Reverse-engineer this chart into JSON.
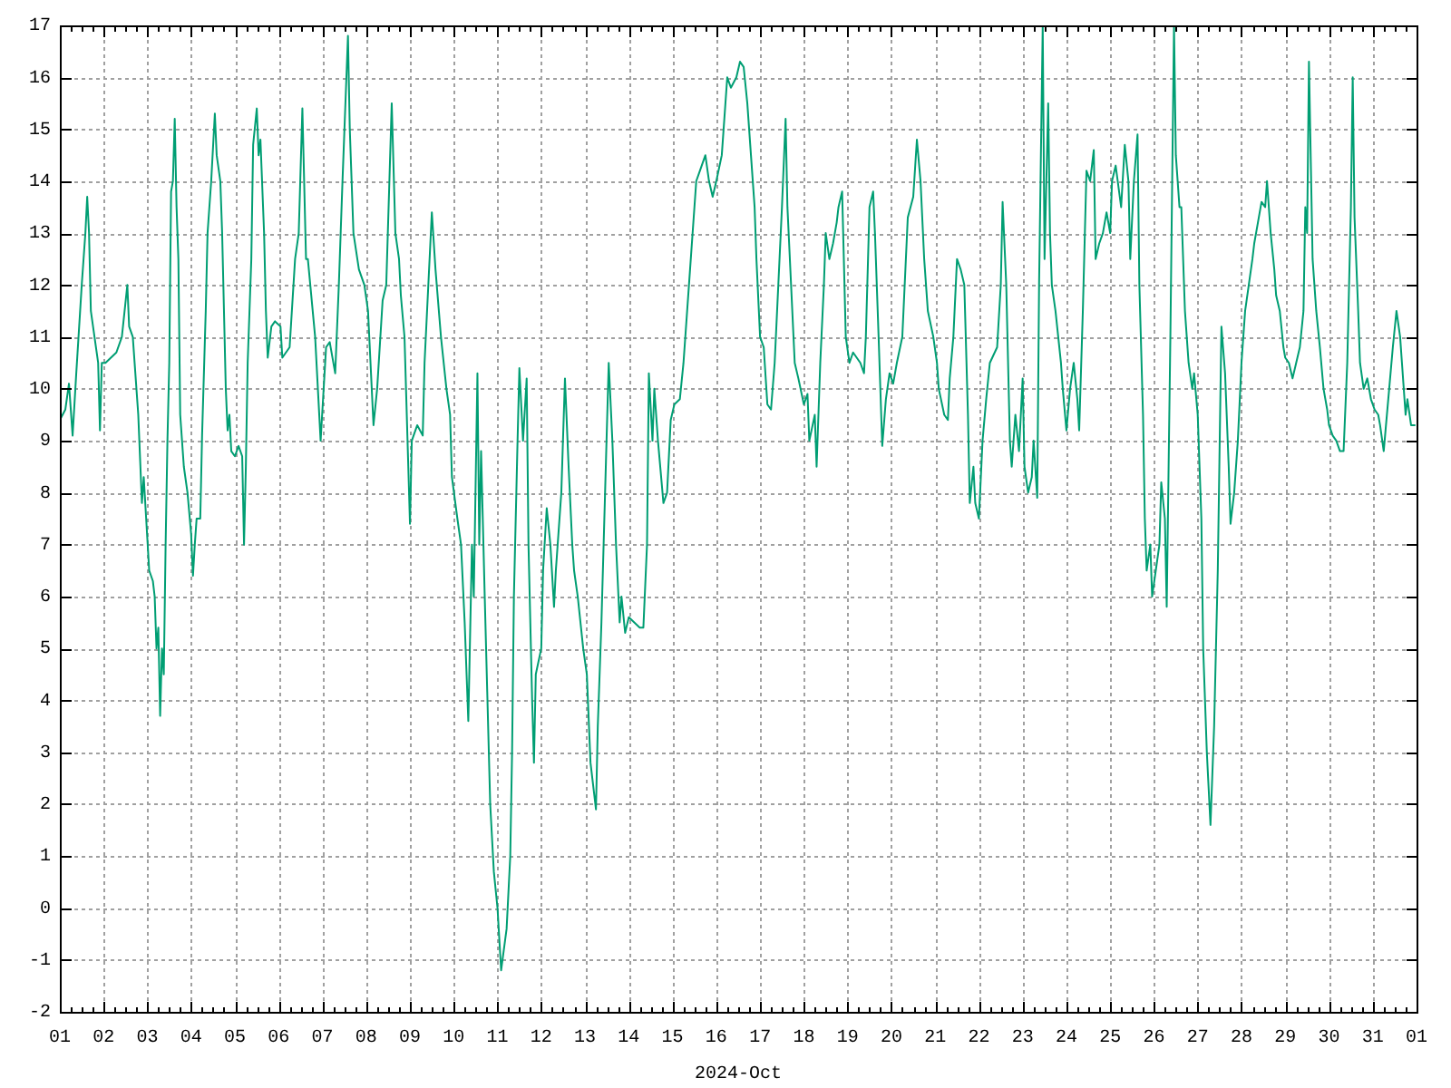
{
  "chart_data": {
    "type": "line",
    "xlabel": "2024-Oct",
    "x": [
      "2024-10-01T00:00",
      "2024-10-01T03:00",
      "2024-10-01T05:00",
      "2024-10-01T07:00",
      "2024-10-01T09:00",
      "2024-10-01T12:00",
      "2024-10-01T14:00",
      "2024-10-01T15:00",
      "2024-10-01T16:00",
      "2024-10-01T17:00",
      "2024-10-01T19:00",
      "2024-10-01T21:00",
      "2024-10-01T22:00",
      "2024-10-01T23:00",
      "2024-10-02T01:00",
      "2024-10-02T04:00",
      "2024-10-02T07:00",
      "2024-10-02T10:00",
      "2024-10-02T13:00",
      "2024-10-02T14:00",
      "2024-10-02T16:00",
      "2024-10-02T19:00",
      "2024-10-02T21:00",
      "2024-10-02T22:00",
      "2024-10-03T00:00",
      "2024-10-03T01:00",
      "2024-10-03T03:00",
      "2024-10-03T04:00",
      "2024-10-03T05:00",
      "2024-10-03T06:00",
      "2024-10-03T07:00",
      "2024-10-03T08:00",
      "2024-10-03T09:00",
      "2024-10-03T10:00",
      "2024-10-03T11:00",
      "2024-10-03T12:00",
      "2024-10-03T13:00",
      "2024-10-03T14:00",
      "2024-10-03T15:00",
      "2024-10-03T16:00",
      "2024-10-03T17:00",
      "2024-10-03T18:00",
      "2024-10-03T20:00",
      "2024-10-03T22:00",
      "2024-10-04T00:00",
      "2024-10-04T01:00",
      "2024-10-04T02:00",
      "2024-10-04T03:00",
      "2024-10-04T05:00",
      "2024-10-04T06:00",
      "2024-10-04T08:00",
      "2024-10-04T09:00",
      "2024-10-04T11:00",
      "2024-10-04T13:00",
      "2024-10-04T14:00",
      "2024-10-04T16:00",
      "2024-10-04T17:00",
      "2024-10-04T19:00",
      "2024-10-04T20:00",
      "2024-10-04T21:00",
      "2024-10-04T22:00",
      "2024-10-05T00:00",
      "2024-10-05T02:00",
      "2024-10-05T04:00",
      "2024-10-05T05:00",
      "2024-10-05T06:00",
      "2024-10-05T07:00",
      "2024-10-05T09:00",
      "2024-10-05T10:00",
      "2024-10-05T12:00",
      "2024-10-05T13:00",
      "2024-10-05T14:00",
      "2024-10-05T16:00",
      "2024-10-05T17:00",
      "2024-10-05T18:00",
      "2024-10-05T20:00",
      "2024-10-05T22:00",
      "2024-10-06T01:00",
      "2024-10-06T02:00",
      "2024-10-06T06:00",
      "2024-10-06T09:00",
      "2024-10-06T11:00",
      "2024-10-06T13:00",
      "2024-10-06T15:00",
      "2024-10-06T16:00",
      "2024-10-06T20:00",
      "2024-10-06T23:00",
      "2024-10-07T02:00",
      "2024-10-07T04:00",
      "2024-10-07T07:00",
      "2024-10-07T09:00",
      "2024-10-07T11:00",
      "2024-10-07T14:00",
      "2024-10-07T15:00",
      "2024-10-07T17:00",
      "2024-10-07T20:00",
      "2024-10-07T23:00",
      "2024-10-08T01:00",
      "2024-10-08T04:00",
      "2024-10-08T06:00",
      "2024-10-08T09:00",
      "2024-10-08T11:00",
      "2024-10-08T14:00",
      "2024-10-08T16:00",
      "2024-10-08T18:00",
      "2024-10-08T19:00",
      "2024-10-08T21:00",
      "2024-10-09T00:00",
      "2024-10-09T01:00",
      "2024-10-09T04:00",
      "2024-10-09T07:00",
      "2024-10-09T08:00",
      "2024-10-09T12:00",
      "2024-10-09T14:00",
      "2024-10-09T17:00",
      "2024-10-09T20:00",
      "2024-10-09T22:00",
      "2024-10-09T23:00",
      "2024-10-10T02:00",
      "2024-10-10T04:00",
      "2024-10-10T06:00",
      "2024-10-10T08:00",
      "2024-10-10T10:00",
      "2024-10-10T11:00",
      "2024-10-10T13:00",
      "2024-10-10T14:00",
      "2024-10-10T15:00",
      "2024-10-10T17:00",
      "2024-10-10T20:00",
      "2024-10-10T22:00",
      "2024-10-11T00:00",
      "2024-10-11T02:00",
      "2024-10-11T05:00",
      "2024-10-11T07:00",
      "2024-10-11T08:00",
      "2024-10-11T09:00",
      "2024-10-11T11:00",
      "2024-10-11T12:00",
      "2024-10-11T14:00",
      "2024-10-11T16:00",
      "2024-10-11T17:00",
      "2024-10-11T19:00",
      "2024-10-11T20:00",
      "2024-10-11T21:00",
      "2024-10-12T00:00",
      "2024-10-12T01:00",
      "2024-10-12T03:00",
      "2024-10-12T05:00",
      "2024-10-12T07:00",
      "2024-10-12T08:00",
      "2024-10-12T11:00",
      "2024-10-12T13:00",
      "2024-10-12T15:00",
      "2024-10-12T17:00",
      "2024-10-12T18:00",
      "2024-10-12T20:00",
      "2024-10-12T23:00",
      "2024-10-13T01:00",
      "2024-10-13T03:00",
      "2024-10-13T06:00",
      "2024-10-13T07:00",
      "2024-10-13T09:00",
      "2024-10-13T11:00",
      "2024-10-13T13:00",
      "2024-10-13T15:00",
      "2024-10-13T17:00",
      "2024-10-13T19:00",
      "2024-10-13T20:00",
      "2024-10-13T22:00",
      "2024-10-14T00:00",
      "2024-10-14T03:00",
      "2024-10-14T06:00",
      "2024-10-14T08:00",
      "2024-10-14T10:00",
      "2024-10-14T11:00",
      "2024-10-14T13:00",
      "2024-10-14T14:00",
      "2024-10-14T16:00",
      "2024-10-14T19:00",
      "2024-10-14T21:00",
      "2024-10-14T23:00",
      "2024-10-15T01:00",
      "2024-10-15T04:00",
      "2024-10-15T06:00",
      "2024-10-15T09:00",
      "2024-10-15T11:00",
      "2024-10-15T13:00",
      "2024-10-15T15:00",
      "2024-10-15T18:00",
      "2024-10-15T20:00",
      "2024-10-15T22:00",
      "2024-10-16T00:00",
      "2024-10-16T03:00",
      "2024-10-16T05:00",
      "2024-10-16T06:00",
      "2024-10-16T08:00",
      "2024-10-16T11:00",
      "2024-10-16T13:00",
      "2024-10-16T15:00",
      "2024-10-16T17:00",
      "2024-10-16T19:00",
      "2024-10-16T21:00",
      "2024-10-16T22:00",
      "2024-10-17T00:00",
      "2024-10-17T02:00",
      "2024-10-17T04:00",
      "2024-10-17T06:00",
      "2024-10-17T08:00",
      "2024-10-17T10:00",
      "2024-10-17T12:00",
      "2024-10-17T14:00",
      "2024-10-17T15:00",
      "2024-10-17T17:00",
      "2024-10-17T19:00",
      "2024-10-17T21:00",
      "2024-10-18T00:00",
      "2024-10-18T02:00",
      "2024-10-18T03:00",
      "2024-10-18T06:00",
      "2024-10-18T07:00",
      "2024-10-18T09:00",
      "2024-10-18T11:00",
      "2024-10-18T12:00",
      "2024-10-18T14:00",
      "2024-10-18T16:00",
      "2024-10-18T18:00",
      "2024-10-18T19:00",
      "2024-10-18T21:00",
      "2024-10-18T23:00",
      "2024-10-19T01:00",
      "2024-10-19T03:00",
      "2024-10-19T05:00",
      "2024-10-19T07:00",
      "2024-10-19T09:00",
      "2024-10-19T10:00",
      "2024-10-19T12:00",
      "2024-10-19T14:00",
      "2024-10-19T15:00",
      "2024-10-19T17:00",
      "2024-10-19T19:00",
      "2024-10-19T21:00",
      "2024-10-19T23:00",
      "2024-10-20T01:00",
      "2024-10-20T03:00",
      "2024-10-20T06:00",
      "2024-10-20T09:00",
      "2024-10-20T12:00",
      "2024-10-20T14:00",
      "2024-10-20T16:00",
      "2024-10-20T18:00",
      "2024-10-20T20:00",
      "2024-10-20T23:00",
      "2024-10-21T01:00",
      "2024-10-21T02:00",
      "2024-10-21T05:00",
      "2024-10-21T07:00",
      "2024-10-21T08:00",
      "2024-10-21T10:00",
      "2024-10-21T12:00",
      "2024-10-21T14:00",
      "2024-10-21T16:00",
      "2024-10-21T18:00",
      "2024-10-21T19:00",
      "2024-10-21T21:00",
      "2024-10-21T22:00",
      "2024-10-22T00:00",
      "2024-10-22T02:00",
      "2024-10-22T04:00",
      "2024-10-22T06:00",
      "2024-10-22T10:00",
      "2024-10-22T12:00",
      "2024-10-22T13:00",
      "2024-10-22T15:00",
      "2024-10-22T17:00",
      "2024-10-22T18:00",
      "2024-10-22T20:00",
      "2024-10-22T22:00",
      "2024-10-23T00:00",
      "2024-10-23T01:00",
      "2024-10-23T03:00",
      "2024-10-23T05:00",
      "2024-10-23T06:00",
      "2024-10-23T08:00",
      "2024-10-23T09:00",
      "2024-10-23T11:00",
      "2024-10-23T12:00",
      "2024-10-23T14:00",
      "2024-10-23T15:00",
      "2024-10-23T16:00",
      "2024-10-23T18:00",
      "2024-10-23T21:00",
      "2024-10-23T22:00",
      "2024-10-24T00:00",
      "2024-10-24T02:00",
      "2024-10-24T04:00",
      "2024-10-24T06:00",
      "2024-10-24T07:00",
      "2024-10-24T09:00",
      "2024-10-24T11:00",
      "2024-10-24T13:00",
      "2024-10-24T15:00",
      "2024-10-24T16:00",
      "2024-10-24T18:00",
      "2024-10-24T20:00",
      "2024-10-24T22:00",
      "2024-10-25T00:00",
      "2024-10-25T01:00",
      "2024-10-25T03:00",
      "2024-10-25T06:00",
      "2024-10-25T08:00",
      "2024-10-25T10:00",
      "2024-10-25T11:00",
      "2024-10-25T13:00",
      "2024-10-25T15:00",
      "2024-10-25T16:00",
      "2024-10-25T18:00",
      "2024-10-25T19:00",
      "2024-10-25T20:00",
      "2024-10-25T22:00",
      "2024-10-25T23:00",
      "2024-10-26T01:00",
      "2024-10-26T03:00",
      "2024-10-26T04:00",
      "2024-10-26T06:00",
      "2024-10-26T07:00",
      "2024-10-26T09:00",
      "2024-10-26T11:00",
      "2024-10-26T12:00",
      "2024-10-26T14:00",
      "2024-10-26T15:00",
      "2024-10-26T17:00",
      "2024-10-26T19:00",
      "2024-10-26T21:00",
      "2024-10-26T22:00",
      "2024-10-27T00:00",
      "2024-10-27T02:00",
      "2024-10-27T03:00",
      "2024-10-27T05:00",
      "2024-10-27T07:00",
      "2024-10-27T09:00",
      "2024-10-27T11:00",
      "2024-10-27T13:00",
      "2024-10-27T15:00",
      "2024-10-27T17:00",
      "2024-10-27T18:00",
      "2024-10-27T20:00",
      "2024-10-27T22:00",
      "2024-10-28T00:00",
      "2024-10-28T02:00",
      "2024-10-28T04:00",
      "2024-10-28T06:00",
      "2024-10-28T07:00",
      "2024-10-28T09:00",
      "2024-10-28T11:00",
      "2024-10-28T13:00",
      "2024-10-28T14:00",
      "2024-10-28T16:00",
      "2024-10-28T18:00",
      "2024-10-28T19:00",
      "2024-10-28T21:00",
      "2024-10-28T23:00",
      "2024-10-29T00:00",
      "2024-10-29T02:00",
      "2024-10-29T04:00",
      "2024-10-29T06:00",
      "2024-10-29T08:00",
      "2024-10-29T10:00",
      "2024-10-29T11:00",
      "2024-10-29T12:00",
      "2024-10-29T13:00",
      "2024-10-29T15:00",
      "2024-10-29T17:00",
      "2024-10-29T19:00",
      "2024-10-29T21:00",
      "2024-10-29T23:00",
      "2024-10-30T00:00",
      "2024-10-30T02:00",
      "2024-10-30T04:00",
      "2024-10-30T06:00",
      "2024-10-30T08:00",
      "2024-10-30T10:00",
      "2024-10-30T12:00",
      "2024-10-30T13:00",
      "2024-10-30T14:00",
      "2024-10-30T16:00",
      "2024-10-30T17:00",
      "2024-10-30T19:00",
      "2024-10-30T21:00",
      "2024-10-30T23:00",
      "2024-10-31T01:00",
      "2024-10-31T03:00",
      "2024-10-31T04:00",
      "2024-10-31T06:00",
      "2024-10-31T07:00",
      "2024-10-31T09:00",
      "2024-10-31T11:00",
      "2024-10-31T13:00",
      "2024-10-31T15:00",
      "2024-10-31T16:00",
      "2024-10-31T18:00",
      "2024-10-31T19:00",
      "2024-10-31T21:00",
      "2024-10-31T23:00"
    ],
    "series": [
      {
        "color": "#009e73",
        "values": [
          9.4,
          9.6,
          10.1,
          9.1,
          10.3,
          12.0,
          13.0,
          13.7,
          13.0,
          11.5,
          11.0,
          10.5,
          9.2,
          10.5,
          10.5,
          10.6,
          10.7,
          11.0,
          12.0,
          11.2,
          11.0,
          9.5,
          7.8,
          8.3,
          7.1,
          6.5,
          6.3,
          6.0,
          5.0,
          5.4,
          3.7,
          5.0,
          4.5,
          7.0,
          9.0,
          10.5,
          13.8,
          14.0,
          15.2,
          13.5,
          12.5,
          9.5,
          8.5,
          8.0,
          7.2,
          6.4,
          7.0,
          7.5,
          7.5,
          9.1,
          11.5,
          13.0,
          14.0,
          15.3,
          14.5,
          14.0,
          13.0,
          10.0,
          9.2,
          9.5,
          8.8,
          8.7,
          8.9,
          8.7,
          7.0,
          8.5,
          10.5,
          12.5,
          14.7,
          15.4,
          14.5,
          14.8,
          13.0,
          11.5,
          10.6,
          11.2,
          11.3,
          11.2,
          10.6,
          10.8,
          12.5,
          13.0,
          15.4,
          12.5,
          12.5,
          11.0,
          9.0,
          10.8,
          10.9,
          10.3,
          12.0,
          14.0,
          16.8,
          15.0,
          13.0,
          12.3,
          12.0,
          11.5,
          9.3,
          10.0,
          11.7,
          12.0,
          15.5,
          13.0,
          12.5,
          11.8,
          11.0,
          7.4,
          9.0,
          9.3,
          9.1,
          10.5,
          13.4,
          12.3,
          11.0,
          10.0,
          9.5,
          8.3,
          7.5,
          7.0,
          5.5,
          3.6,
          7.0,
          6.0,
          10.3,
          7.0,
          8.8,
          6.0,
          2.0,
          0.7,
          0.0,
          -1.2,
          -0.4,
          1.0,
          3.0,
          6.0,
          9.0,
          10.4,
          9.0,
          10.2,
          7.0,
          4.0,
          2.8,
          4.5,
          5.0,
          6.5,
          7.7,
          7.0,
          5.8,
          6.5,
          8.0,
          10.2,
          8.5,
          7.0,
          6.5,
          6.0,
          5.0,
          4.5,
          2.8,
          1.9,
          3.5,
          5.5,
          8.0,
          10.5,
          9.0,
          7.0,
          5.5,
          6.0,
          5.3,
          5.6,
          5.5,
          5.4,
          5.4,
          7.0,
          10.3,
          9.0,
          10.0,
          9.0,
          7.8,
          8.0,
          9.4,
          9.7,
          9.8,
          10.5,
          12.0,
          13.0,
          14.0,
          14.2,
          14.5,
          14.0,
          13.7,
          14.0,
          14.5,
          15.5,
          16.0,
          15.8,
          16.0,
          16.3,
          16.2,
          15.5,
          14.5,
          13.5,
          12.5,
          11.0,
          10.8,
          9.7,
          9.6,
          10.5,
          12.0,
          13.5,
          15.2,
          13.5,
          12.0,
          10.5,
          10.2,
          9.7,
          9.9,
          9.0,
          9.5,
          8.5,
          10.5,
          12.0,
          13.0,
          12.5,
          12.8,
          13.2,
          13.5,
          13.8,
          11.0,
          10.5,
          10.7,
          10.6,
          10.5,
          10.3,
          11.0,
          13.5,
          13.8,
          13.0,
          11.0,
          8.9,
          9.8,
          10.3,
          10.1,
          10.5,
          11.0,
          13.3,
          13.7,
          14.8,
          14.0,
          12.5,
          11.5,
          11.0,
          10.5,
          10.0,
          9.5,
          9.4,
          10.2,
          11.0,
          12.5,
          12.3,
          12.0,
          9.5,
          7.8,
          8.5,
          7.8,
          7.5,
          9.0,
          9.8,
          10.5,
          10.8,
          12.0,
          13.6,
          12.0,
          9.0,
          8.5,
          9.5,
          8.8,
          10.2,
          8.5,
          8.0,
          8.3,
          9.0,
          7.9,
          12.0,
          17.0,
          12.5,
          15.5,
          13.0,
          12.0,
          11.5,
          10.5,
          10.0,
          9.2,
          10.0,
          10.5,
          9.8,
          9.2,
          11.5,
          14.2,
          14.0,
          14.6,
          12.5,
          12.8,
          13.0,
          13.4,
          13.0,
          14.0,
          14.3,
          13.5,
          14.7,
          14.0,
          12.5,
          14.0,
          14.9,
          12.0,
          9.5,
          7.5,
          6.5,
          7.0,
          6.0,
          6.5,
          7.0,
          8.2,
          7.5,
          5.8,
          11.0,
          17.0,
          14.5,
          13.5,
          13.5,
          11.5,
          10.5,
          10.0,
          10.3,
          9.5,
          7.5,
          5.0,
          3.0,
          1.6,
          3.5,
          6.5,
          11.2,
          10.3,
          8.5,
          7.4,
          8.0,
          9.0,
          10.5,
          11.5,
          12.0,
          12.5,
          12.8,
          13.2,
          13.6,
          13.5,
          14.0,
          13.0,
          12.3,
          11.8,
          11.5,
          10.8,
          10.6,
          10.5,
          10.2,
          10.5,
          10.8,
          11.5,
          13.5,
          13.0,
          16.3,
          12.5,
          11.5,
          10.8,
          10.0,
          9.6,
          9.3,
          9.1,
          9.0,
          8.8,
          8.8,
          10.5,
          13.5,
          16.0,
          13.3,
          11.5,
          10.5,
          10.0,
          10.2,
          9.8,
          9.6,
          9.5,
          9.3,
          8.8,
          9.2,
          10.0,
          10.8,
          11.5,
          11.0,
          10.5,
          9.5,
          9.8,
          9.3,
          9.3
        ]
      }
    ],
    "xlim": [
      "2024-10-01",
      "2024-11-01"
    ],
    "xticks": [
      {
        "value": "2024-10-01",
        "label": "01"
      },
      {
        "value": "2024-10-01T06:00",
        "label": null
      },
      {
        "value": "2024-10-01T12:00",
        "label": null
      },
      {
        "value": "2024-10-01T18:00",
        "label": null
      },
      {
        "value": "2024-10-02",
        "label": "02"
      },
      {
        "value": "2024-10-02T06:00",
        "label": null
      },
      {
        "value": "2024-10-02T12:00",
        "label": null
      },
      {
        "value": "2024-10-02T18:00",
        "label": null
      },
      {
        "value": "2024-10-03",
        "label": "03"
      },
      {
        "value": "2024-10-03T06:00",
        "label": null
      },
      {
        "value": "2024-10-03T12:00",
        "label": null
      },
      {
        "value": "2024-10-03T18:00",
        "label": null
      },
      {
        "value": "2024-10-04",
        "label": "04"
      },
      {
        "value": "2024-10-04T06:00",
        "label": null
      },
      {
        "value": "2024-10-04T12:00",
        "label": null
      },
      {
        "value": "2024-10-04T18:00",
        "label": null
      },
      {
        "value": "2024-10-05",
        "label": "05"
      },
      {
        "value": "2024-10-05T06:00",
        "label": null
      },
      {
        "value": "2024-10-05T12:00",
        "label": null
      },
      {
        "value": "2024-10-05T18:00",
        "label": null
      },
      {
        "value": "2024-10-06",
        "label": "06"
      },
      {
        "value": "2024-10-06T06:00",
        "label": null
      },
      {
        "value": "2024-10-06T12:00",
        "label": null
      },
      {
        "value": "2024-10-06T18:00",
        "label": null
      },
      {
        "value": "2024-10-07",
        "label": "07"
      },
      {
        "value": "2024-10-07T06:00",
        "label": null
      },
      {
        "value": "2024-10-07T12:00",
        "label": null
      },
      {
        "value": "2024-10-07T18:00",
        "label": null
      },
      {
        "value": "2024-10-08",
        "label": "08"
      },
      {
        "value": "2024-10-08T06:00",
        "label": null
      },
      {
        "value": "2024-10-08T12:00",
        "label": null
      },
      {
        "value": "2024-10-08T18:00",
        "label": null
      },
      {
        "value": "2024-10-09",
        "label": "09"
      },
      {
        "value": "2024-10-09T06:00",
        "label": null
      },
      {
        "value": "2024-10-09T12:00",
        "label": null
      },
      {
        "value": "2024-10-09T18:00",
        "label": null
      },
      {
        "value": "2024-10-10",
        "label": "10"
      },
      {
        "value": "2024-10-10T06:00",
        "label": null
      },
      {
        "value": "2024-10-10T12:00",
        "label": null
      },
      {
        "value": "2024-10-10T18:00",
        "label": null
      },
      {
        "value": "2024-10-11",
        "label": "11"
      },
      {
        "value": "2024-10-11T06:00",
        "label": null
      },
      {
        "value": "2024-10-11T12:00",
        "label": null
      },
      {
        "value": "2024-10-11T18:00",
        "label": null
      },
      {
        "value": "2024-10-12",
        "label": "12"
      },
      {
        "value": "2024-10-12T06:00",
        "label": null
      },
      {
        "value": "2024-10-12T12:00",
        "label": null
      },
      {
        "value": "2024-10-12T18:00",
        "label": null
      },
      {
        "value": "2024-10-13",
        "label": "13"
      },
      {
        "value": "2024-10-13T06:00",
        "label": null
      },
      {
        "value": "2024-10-13T12:00",
        "label": null
      },
      {
        "value": "2024-10-13T18:00",
        "label": null
      },
      {
        "value": "2024-10-14",
        "label": "14"
      },
      {
        "value": "2024-10-14T06:00",
        "label": null
      },
      {
        "value": "2024-10-14T12:00",
        "label": null
      },
      {
        "value": "2024-10-14T18:00",
        "label": null
      },
      {
        "value": "2024-10-15",
        "label": "15"
      },
      {
        "value": "2024-10-15T06:00",
        "label": null
      },
      {
        "value": "2024-10-15T12:00",
        "label": null
      },
      {
        "value": "2024-10-15T18:00",
        "label": null
      },
      {
        "value": "2024-10-16",
        "label": "16"
      },
      {
        "value": "2024-10-16T06:00",
        "label": null
      },
      {
        "value": "2024-10-16T12:00",
        "label": null
      },
      {
        "value": "2024-10-16T18:00",
        "label": null
      },
      {
        "value": "2024-10-17",
        "label": "17"
      },
      {
        "value": "2024-10-17T06:00",
        "label": null
      },
      {
        "value": "2024-10-17T12:00",
        "label": null
      },
      {
        "value": "2024-10-17T18:00",
        "label": null
      },
      {
        "value": "2024-10-18",
        "label": "18"
      },
      {
        "value": "2024-10-18T06:00",
        "label": null
      },
      {
        "value": "2024-10-18T12:00",
        "label": null
      },
      {
        "value": "2024-10-18T18:00",
        "label": null
      },
      {
        "value": "2024-10-19",
        "label": "19"
      },
      {
        "value": "2024-10-19T06:00",
        "label": null
      },
      {
        "value": "2024-10-19T12:00",
        "label": null
      },
      {
        "value": "2024-10-19T18:00",
        "label": null
      },
      {
        "value": "2024-10-20",
        "label": "20"
      },
      {
        "value": "2024-10-20T06:00",
        "label": null
      },
      {
        "value": "2024-10-20T12:00",
        "label": null
      },
      {
        "value": "2024-10-20T18:00",
        "label": null
      },
      {
        "value": "2024-10-21",
        "label": "21"
      },
      {
        "value": "2024-10-21T06:00",
        "label": null
      },
      {
        "value": "2024-10-21T12:00",
        "label": null
      },
      {
        "value": "2024-10-21T18:00",
        "label": null
      },
      {
        "value": "2024-10-22",
        "label": "22"
      },
      {
        "value": "2024-10-22T06:00",
        "label": null
      },
      {
        "value": "2024-10-22T12:00",
        "label": null
      },
      {
        "value": "2024-10-22T18:00",
        "label": null
      },
      {
        "value": "2024-10-23",
        "label": "23"
      },
      {
        "value": "2024-10-23T06:00",
        "label": null
      },
      {
        "value": "2024-10-23T12:00",
        "label": null
      },
      {
        "value": "2024-10-23T18:00",
        "label": null
      },
      {
        "value": "2024-10-24",
        "label": "24"
      },
      {
        "value": "2024-10-24T06:00",
        "label": null
      },
      {
        "value": "2024-10-24T12:00",
        "label": null
      },
      {
        "value": "2024-10-24T18:00",
        "label": null
      },
      {
        "value": "2024-10-25",
        "label": "25"
      },
      {
        "value": "2024-10-25T06:00",
        "label": null
      },
      {
        "value": "2024-10-25T12:00",
        "label": null
      },
      {
        "value": "2024-10-25T18:00",
        "label": null
      },
      {
        "value": "2024-10-26",
        "label": "26"
      },
      {
        "value": "2024-10-26T06:00",
        "label": null
      },
      {
        "value": "2024-10-26T12:00",
        "label": null
      },
      {
        "value": "2024-10-26T18:00",
        "label": null
      },
      {
        "value": "2024-10-27",
        "label": "27"
      },
      {
        "value": "2024-10-27T06:00",
        "label": null
      },
      {
        "value": "2024-10-27T12:00",
        "label": null
      },
      {
        "value": "2024-10-27T18:00",
        "label": null
      },
      {
        "value": "2024-10-28",
        "label": "28"
      },
      {
        "value": "2024-10-28T06:00",
        "label": null
      },
      {
        "value": "2024-10-28T12:00",
        "label": null
      },
      {
        "value": "2024-10-28T18:00",
        "label": null
      },
      {
        "value": "2024-10-29",
        "label": "29"
      },
      {
        "value": "2024-10-29T06:00",
        "label": null
      },
      {
        "value": "2024-10-29T12:00",
        "label": null
      },
      {
        "value": "2024-10-29T18:00",
        "label": null
      },
      {
        "value": "2024-10-30",
        "label": "30"
      },
      {
        "value": "2024-10-30T06:00",
        "label": null
      },
      {
        "value": "2024-10-30T12:00",
        "label": null
      },
      {
        "value": "2024-10-30T18:00",
        "label": null
      },
      {
        "value": "2024-10-31",
        "label": "31"
      },
      {
        "value": "2024-10-31T06:00",
        "label": null
      },
      {
        "value": "2024-10-31T12:00",
        "label": null
      },
      {
        "value": "2024-10-31T18:00",
        "label": null
      },
      {
        "value": "2024-11-01",
        "label": "01"
      }
    ],
    "ylim": [
      -2,
      17
    ],
    "yticks": [
      -2,
      -1,
      0,
      1,
      2,
      3,
      4,
      5,
      6,
      7,
      8,
      9,
      10,
      11,
      12,
      13,
      14,
      15,
      16,
      17
    ],
    "grid": true
  }
}
